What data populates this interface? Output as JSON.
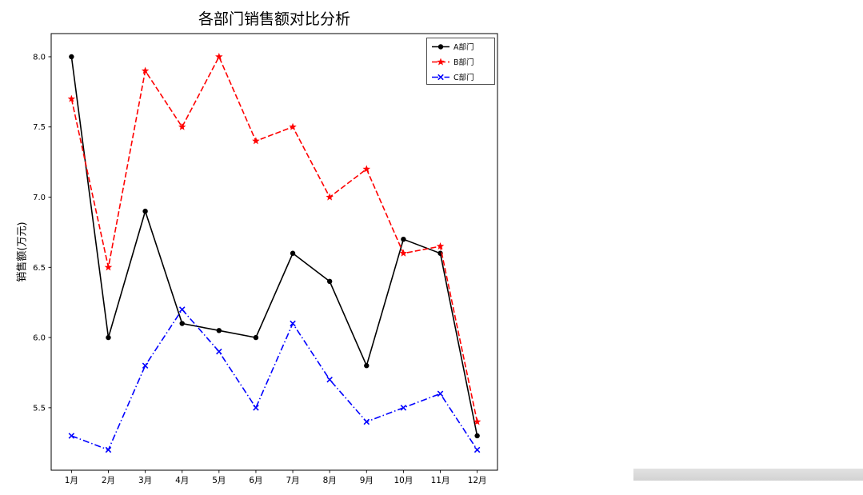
{
  "page": {
    "background": "#ffffff"
  },
  "chart_data": {
    "type": "line",
    "title": "各部门销售额对比分析",
    "xlabel": "",
    "ylabel": "销售额(万元)",
    "categories": [
      "1月",
      "2月",
      "3月",
      "4月",
      "5月",
      "6月",
      "7月",
      "8月",
      "9月",
      "10月",
      "11月",
      "12月"
    ],
    "series": [
      {
        "name": "A部门",
        "color": "#000000",
        "linestyle": "solid",
        "marker": "circle",
        "values": [
          8.0,
          6.0,
          6.9,
          6.1,
          6.05,
          6.0,
          6.6,
          6.4,
          5.8,
          6.7,
          6.6,
          5.3
        ]
      },
      {
        "name": "B部门",
        "color": "#ff0000",
        "linestyle": "dashed",
        "marker": "star",
        "values": [
          7.7,
          6.5,
          7.9,
          7.5,
          8.0,
          7.4,
          7.5,
          7.0,
          7.2,
          6.6,
          6.65,
          5.4
        ]
      },
      {
        "name": "C部门",
        "color": "#0000ff",
        "linestyle": "dashdot",
        "marker": "x",
        "values": [
          5.3,
          5.2,
          5.8,
          6.2,
          5.9,
          5.5,
          6.1,
          5.7,
          5.4,
          5.5,
          5.6,
          5.2
        ]
      }
    ],
    "yticks": [
      5.5,
      6.0,
      6.5,
      7.0,
      7.5,
      8.0
    ],
    "ylim": [
      5.055,
      8.165
    ],
    "grid": false,
    "legend_position": "upper right"
  }
}
